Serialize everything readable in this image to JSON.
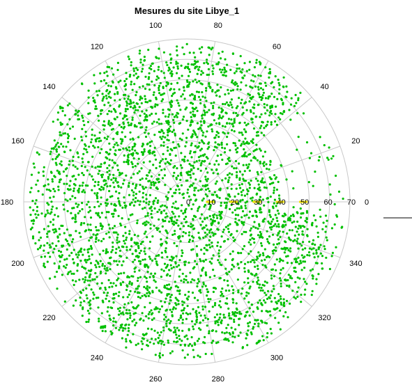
{
  "chart_data": {
    "type": "scatter",
    "projection": "polar",
    "title": "Mesures du site Libye_1",
    "angle_unit": "degrees",
    "angle_direction": "counterclockwise",
    "angle_zero": "east",
    "angle_ticks": [
      0,
      20,
      40,
      60,
      80,
      100,
      120,
      140,
      160,
      180,
      200,
      220,
      240,
      260,
      280,
      300,
      320,
      340
    ],
    "radial_ticks": [
      0,
      10,
      20,
      30,
      40,
      50,
      60,
      70
    ],
    "rlim": [
      0,
      70
    ],
    "grid": true,
    "legend": "none",
    "colors": {
      "points": "#00c000",
      "radial_labels_highlight": "#f0e000",
      "grid": "#c8c8c8"
    },
    "series": [
      {
        "color": "#00c000",
        "distribution": {
          "approx_count": 3500,
          "r_range": [
            0,
            68
          ],
          "dense_region": "theta 60-360, r 0-65",
          "sparse_region": "theta 0-40, r 40-70"
        }
      }
    ]
  }
}
